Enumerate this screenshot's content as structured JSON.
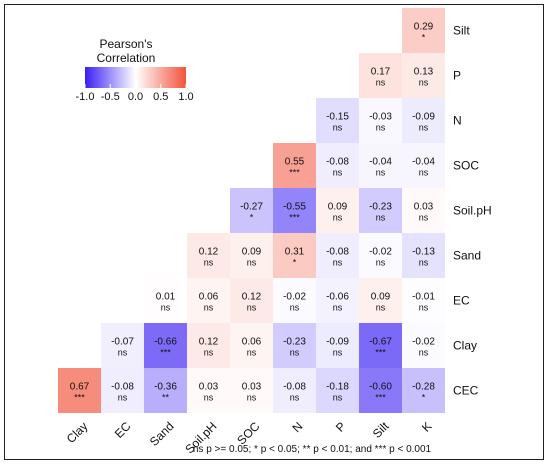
{
  "chart_data": {
    "type": "heatmap",
    "title": "",
    "xlabel": "",
    "ylabel": "",
    "x_categories": [
      "Clay",
      "EC",
      "Sand",
      "Soil.pH",
      "SOC",
      "N",
      "P",
      "Silt",
      "K"
    ],
    "y_categories": [
      "Silt",
      "P",
      "N",
      "SOC",
      "Soil.pH",
      "Sand",
      "EC",
      "Clay",
      "CEC"
    ],
    "cells": [
      {
        "x": "K",
        "y": "Silt",
        "r": "0.29",
        "sig": "*"
      },
      {
        "x": "Silt",
        "y": "P",
        "r": "0.17",
        "sig": "ns"
      },
      {
        "x": "K",
        "y": "P",
        "r": "0.13",
        "sig": "ns"
      },
      {
        "x": "P",
        "y": "N",
        "r": "-0.15",
        "sig": "ns"
      },
      {
        "x": "Silt",
        "y": "N",
        "r": "-0.03",
        "sig": "ns"
      },
      {
        "x": "K",
        "y": "N",
        "r": "-0.09",
        "sig": "ns"
      },
      {
        "x": "N",
        "y": "SOC",
        "r": "0.55",
        "sig": "***"
      },
      {
        "x": "P",
        "y": "SOC",
        "r": "-0.08",
        "sig": "ns"
      },
      {
        "x": "Silt",
        "y": "SOC",
        "r": "-0.04",
        "sig": "ns"
      },
      {
        "x": "K",
        "y": "SOC",
        "r": "-0.04",
        "sig": "ns"
      },
      {
        "x": "SOC",
        "y": "Soil.pH",
        "r": "-0.27",
        "sig": "*"
      },
      {
        "x": "N",
        "y": "Soil.pH",
        "r": "-0.55",
        "sig": "***"
      },
      {
        "x": "P",
        "y": "Soil.pH",
        "r": "0.09",
        "sig": "ns"
      },
      {
        "x": "Silt",
        "y": "Soil.pH",
        "r": "-0.23",
        "sig": "ns"
      },
      {
        "x": "K",
        "y": "Soil.pH",
        "r": "0.03",
        "sig": "ns"
      },
      {
        "x": "Soil.pH",
        "y": "Sand",
        "r": "0.12",
        "sig": "ns"
      },
      {
        "x": "SOC",
        "y": "Sand",
        "r": "0.09",
        "sig": "ns"
      },
      {
        "x": "N",
        "y": "Sand",
        "r": "0.31",
        "sig": "*"
      },
      {
        "x": "P",
        "y": "Sand",
        "r": "-0.08",
        "sig": "ns"
      },
      {
        "x": "Silt",
        "y": "Sand",
        "r": "-0.02",
        "sig": "ns"
      },
      {
        "x": "K",
        "y": "Sand",
        "r": "-0.13",
        "sig": "ns"
      },
      {
        "x": "Sand",
        "y": "EC",
        "r": "0.01",
        "sig": "ns"
      },
      {
        "x": "Soil.pH",
        "y": "EC",
        "r": "0.06",
        "sig": "ns"
      },
      {
        "x": "SOC",
        "y": "EC",
        "r": "0.12",
        "sig": "ns"
      },
      {
        "x": "N",
        "y": "EC",
        "r": "-0.02",
        "sig": "ns"
      },
      {
        "x": "P",
        "y": "EC",
        "r": "-0.06",
        "sig": "ns"
      },
      {
        "x": "Silt",
        "y": "EC",
        "r": "0.09",
        "sig": "ns"
      },
      {
        "x": "K",
        "y": "EC",
        "r": "-0.01",
        "sig": "ns"
      },
      {
        "x": "EC",
        "y": "Clay",
        "r": "-0.07",
        "sig": "ns"
      },
      {
        "x": "Sand",
        "y": "Clay",
        "r": "-0.66",
        "sig": "***"
      },
      {
        "x": "Soil.pH",
        "y": "Clay",
        "r": "0.12",
        "sig": "ns"
      },
      {
        "x": "SOC",
        "y": "Clay",
        "r": "0.06",
        "sig": "ns"
      },
      {
        "x": "N",
        "y": "Clay",
        "r": "-0.23",
        "sig": "ns"
      },
      {
        "x": "P",
        "y": "Clay",
        "r": "-0.09",
        "sig": "ns"
      },
      {
        "x": "Silt",
        "y": "Clay",
        "r": "-0.67",
        "sig": "***"
      },
      {
        "x": "K",
        "y": "Clay",
        "r": "-0.02",
        "sig": "ns"
      },
      {
        "x": "Clay",
        "y": "CEC",
        "r": "0.67",
        "sig": "***"
      },
      {
        "x": "EC",
        "y": "CEC",
        "r": "-0.08",
        "sig": "ns"
      },
      {
        "x": "Sand",
        "y": "CEC",
        "r": "-0.36",
        "sig": "**"
      },
      {
        "x": "Soil.pH",
        "y": "CEC",
        "r": "0.03",
        "sig": "ns"
      },
      {
        "x": "SOC",
        "y": "CEC",
        "r": "0.03",
        "sig": "ns"
      },
      {
        "x": "N",
        "y": "CEC",
        "r": "-0.08",
        "sig": "ns"
      },
      {
        "x": "P",
        "y": "CEC",
        "r": "-0.18",
        "sig": "ns"
      },
      {
        "x": "Silt",
        "y": "CEC",
        "r": "-0.60",
        "sig": "***"
      },
      {
        "x": "K",
        "y": "CEC",
        "r": "-0.28",
        "sig": "*"
      }
    ],
    "legend": {
      "title_line1": "Pearson's",
      "title_line2": "Correlation",
      "ticks": [
        "-1.0",
        "-0.5",
        "0.0",
        "0.5",
        "1.0"
      ],
      "tick_values": [
        -1.0,
        -0.5,
        0.0,
        0.5,
        1.0
      ],
      "range": [
        -1.0,
        1.0
      ],
      "placement": "top-left"
    },
    "colors": {
      "negative": "#3a1ff5",
      "zero": "#ffffff",
      "positive": "#f2533b"
    },
    "footnote": "ns p >= 0.05; * p < 0.05; ** p < 0.01; and *** p < 0.001"
  }
}
